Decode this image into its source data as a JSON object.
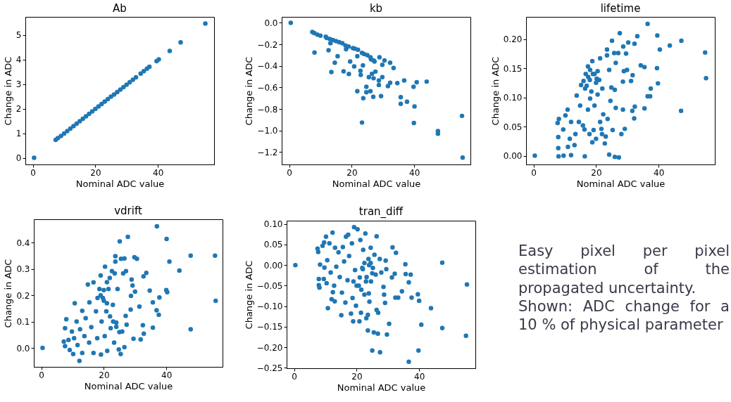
{
  "chart_data": [
    {
      "type": "scatter",
      "title": "Ab",
      "xlabel": "Nominal ADC value",
      "ylabel": "Change in ADC",
      "color": "#1f77b4",
      "marker": "circle",
      "grid": false,
      "xlim": [
        -2.4,
        58
      ],
      "ylim": [
        -0.27,
        5.74
      ],
      "xticks": [
        0,
        20,
        40
      ],
      "yticks": [
        0,
        1,
        2,
        3,
        4,
        5
      ],
      "x": [
        0.4,
        7.3,
        8,
        9,
        10,
        11,
        12,
        13,
        14,
        15,
        16,
        17,
        18,
        19,
        20,
        21,
        22,
        23,
        24,
        25,
        26,
        27,
        28,
        29,
        30,
        31,
        32,
        33,
        34.5,
        35.5,
        36.5,
        37.3,
        39.6,
        40.3,
        43.8,
        47.3,
        55.2
      ],
      "values": [
        0,
        0.73,
        0.8,
        0.89,
        0.99,
        1.09,
        1.19,
        1.29,
        1.39,
        1.49,
        1.59,
        1.69,
        1.79,
        1.89,
        1.99,
        2.09,
        2.19,
        2.29,
        2.39,
        2.49,
        2.58,
        2.68,
        2.78,
        2.88,
        2.98,
        3.08,
        3.18,
        3.28,
        3.43,
        3.53,
        3.63,
        3.71,
        3.94,
        4.01,
        4.35,
        4.7,
        5.47
      ]
    },
    {
      "type": "scatter",
      "title": "kb",
      "xlabel": "Nominal ADC value",
      "ylabel": "Change in ADC",
      "color": "#1f77b4",
      "marker": "circle",
      "grid": false,
      "xlim": [
        -2.4,
        58
      ],
      "ylim": [
        -1.315,
        0.055
      ],
      "xticks": [
        0,
        20,
        40
      ],
      "yticks": [
        {
          "value": -1.2,
          "label": "−1.2"
        },
        {
          "value": -1,
          "label": "−1.0"
        },
        {
          "value": -0.8,
          "label": "−0.8"
        },
        {
          "value": -0.6,
          "label": "−0.6"
        },
        {
          "value": -0.4,
          "label": "−0.4"
        },
        {
          "value": -0.2,
          "label": "−0.2"
        },
        {
          "value": 0,
          "label": "0.0"
        }
      ],
      "x": [
        0.5,
        7.4,
        8,
        9,
        10,
        11.7,
        12,
        13,
        13.2,
        14,
        15,
        16,
        17,
        18,
        18.2,
        19,
        20.4,
        21,
        21.8,
        22,
        23.3,
        24,
        25,
        26,
        26.2,
        27,
        27.3,
        8.1,
        12.6,
        14.6,
        15.5,
        13.5,
        17.4,
        19.1,
        19.5,
        20.8,
        21.8,
        22.8,
        22.9,
        23.3,
        23.6,
        23.7,
        24.7,
        24.7,
        25.5,
        26,
        26.5,
        26.9,
        27,
        27.6,
        28.7,
        28.7,
        28.9,
        29.4,
        29.8,
        29.8,
        30.5,
        31.6,
        32.3,
        32.3,
        33.4,
        34.6,
        35.7,
        35.7,
        36.8,
        37.7,
        39.8,
        39.9,
        40.1,
        40.8,
        44,
        47.6,
        47.6,
        55.3,
        55.5
      ],
      "values": [
        0,
        -0.085,
        -0.095,
        -0.11,
        -0.12,
        -0.13,
        -0.14,
        -0.15,
        -0.19,
        -0.16,
        -0.17,
        -0.18,
        -0.19,
        -0.21,
        -0.245,
        -0.22,
        -0.235,
        -0.24,
        -0.31,
        -0.25,
        -0.28,
        -0.29,
        -0.3,
        -0.32,
        -0.34,
        -0.35,
        -0.36,
        -0.276,
        -0.255,
        -0.37,
        -0.31,
        -0.457,
        -0.45,
        -0.475,
        -0.36,
        -0.405,
        -0.635,
        -0.445,
        -0.484,
        -0.926,
        -0.395,
        -0.7,
        -0.594,
        -0.644,
        -0.505,
        -0.635,
        -0.473,
        -0.687,
        -0.515,
        -0.453,
        -0.535,
        -0.577,
        -0.32,
        -0.68,
        -0.504,
        -0.39,
        -0.349,
        -0.587,
        -0.556,
        -0.37,
        -0.42,
        -0.56,
        -0.69,
        -0.753,
        -0.536,
        -0.733,
        -0.594,
        -0.93,
        -0.776,
        -0.552,
        -0.546,
        -1.005,
        -1.03,
        -0.864,
        -1.252
      ]
    },
    {
      "type": "scatter",
      "title": "lifetime",
      "xlabel": "Nominal ADC value",
      "ylabel": "Change in ADC",
      "color": "#1f77b4",
      "marker": "circle",
      "grid": false,
      "xlim": [
        -2.4,
        58
      ],
      "ylim": [
        -0.015,
        0.238
      ],
      "xticks": [
        0,
        20,
        40
      ],
      "yticks": [
        {
          "value": 0,
          "label": "0.00"
        },
        {
          "value": 0.05,
          "label": "0.05"
        },
        {
          "value": 0.1,
          "label": "0.10"
        },
        {
          "value": 0.15,
          "label": "0.15"
        },
        {
          "value": 0.2,
          "label": "0.20"
        }
      ],
      "x": [
        0.4,
        7.9,
        8,
        9.6,
        12,
        16.4,
        24.2,
        26,
        27.3,
        7.7,
        8.1,
        7.9,
        9.5,
        10.2,
        10.9,
        11,
        11.6,
        12,
        13.1,
        13.4,
        13.8,
        14.5,
        14.9,
        15.8,
        16.3,
        15.2,
        16,
        16.7,
        17.4,
        18.1,
        18.8,
        19.5,
        20.2,
        21.3,
        18.8,
        20,
        17.9,
        19.2,
        17.4,
        18.1,
        19.5,
        20.5,
        21.3,
        21.7,
        21.9,
        22.3,
        22.8,
        23.1,
        23.5,
        23.5,
        23.7,
        24.2,
        24.6,
        24.9,
        25.1,
        25.3,
        25.8,
        26,
        26.3,
        26.3,
        27.1,
        27.6,
        28.1,
        28.6,
        28.6,
        28.7,
        28.9,
        29.2,
        29.6,
        29.9,
        30.3,
        31.2,
        31.6,
        31.7,
        32.2,
        32.3,
        32.4,
        33.2,
        34.3,
        35.5,
        35.5,
        36.5,
        36.5,
        37.3,
        37.5,
        39.5,
        39.6,
        39.8,
        40.4,
        43.6,
        47.3,
        47.2,
        54.9,
        55.2,
        17,
        18,
        19,
        20,
        21,
        22,
        18.5,
        20.5,
        17.5,
        16.5
      ],
      "values": [
        0,
        0.013,
        -0.001,
        0,
        0.001,
        -0.001,
        0.002,
        -0.002,
        -0.003,
        0.056,
        0.063,
        0.032,
        0.045,
        0.069,
        0.079,
        0.015,
        0.029,
        0.058,
        0.018,
        0.037,
        0.103,
        0.058,
        0.086,
        0.052,
        0.045,
        0.121,
        0.128,
        0.14,
        0.153,
        0.147,
        0.162,
        0.14,
        0.132,
        0.167,
        0.023,
        0.029,
        0.037,
        0.044,
        0.079,
        0.098,
        0.086,
        0.105,
        0.058,
        0.046,
        0.037,
        0.071,
        0.021,
        0.033,
        0.182,
        0.172,
        0.063,
        0.147,
        0.094,
        0.117,
        0.197,
        0.044,
        0.176,
        0.113,
        0.159,
        0.082,
        0.176,
        0.21,
        0.037,
        0.127,
        0.079,
        0.187,
        0.145,
        0.046,
        0.175,
        0.147,
        0.194,
        0.128,
        0.077,
        0.138,
        0.064,
        0.192,
        0.084,
        0.205,
        0.155,
        0.152,
        0.081,
        0.226,
        0.102,
        0.102,
        0.115,
        0.15,
        0.206,
        0.124,
        0.182,
        0.189,
        0.197,
        0.077,
        0.177,
        0.133,
        0.12,
        0.13,
        0.14,
        0.125,
        0.13,
        0.115,
        0.11,
        0.145,
        0.135,
        0.115
      ]
    },
    {
      "type": "scatter",
      "title": "vdrift",
      "xlabel": "Nominal ADC value",
      "ylabel": "Change in ADC",
      "color": "#1f77b4",
      "marker": "circle",
      "grid": false,
      "xlim": [
        -2.4,
        58
      ],
      "ylim": [
        -0.072,
        0.489
      ],
      "xticks": [
        0,
        20,
        40
      ],
      "yticks": [
        {
          "value": 0,
          "label": "0.0"
        },
        {
          "value": 0.1,
          "label": "0.1"
        },
        {
          "value": 0.2,
          "label": "0.2"
        },
        {
          "value": 0.3,
          "label": "0.3"
        },
        {
          "value": 0.4,
          "label": "0.4"
        }
      ],
      "x": [
        0.4,
        7.2,
        7.6,
        8,
        7.6,
        8.7,
        9.1,
        9.8,
        10.2,
        10.5,
        10.7,
        11.3,
        11.6,
        12.2,
        12.4,
        13.1,
        13.1,
        13.8,
        14.2,
        14.9,
        15.3,
        15.4,
        16,
        16.7,
        16.7,
        17.5,
        17.9,
        18.6,
        19,
        19.1,
        19.3,
        19.7,
        20.3,
        20.4,
        20.8,
        21.1,
        21.5,
        21.9,
        22.2,
        22.6,
        22.9,
        23.3,
        23.5,
        23.7,
        23.7,
        24,
        24.4,
        24.8,
        25.1,
        25.4,
        25.5,
        25.9,
        26.2,
        26.6,
        26.6,
        27,
        27.1,
        27.3,
        27.7,
        28.6,
        28.7,
        28.9,
        29.2,
        29.5,
        29.8,
        30,
        30.6,
        31.4,
        31.8,
        32.5,
        32.7,
        32.8,
        33.6,
        34.7,
        35.7,
        35.7,
        36.9,
        37,
        37.6,
        37.8,
        40,
        40.1,
        40.3,
        41,
        44.2,
        47.8,
        47.8,
        55.6,
        55.8,
        19,
        20,
        21,
        22,
        23,
        24,
        25,
        20,
        21,
        18
      ],
      "values": [
        0,
        0.024,
        0.075,
        0.109,
        0.007,
        0.03,
        -0.008,
        0.062,
        -0.023,
        0.037,
        0.17,
        0.1,
        0.011,
        -0.049,
        0.071,
        -0.019,
        0.141,
        0.045,
        0.113,
        0.241,
        0.02,
        0.173,
        0.079,
        0.249,
        -0.019,
        0.139,
        0.037,
        0.224,
        0.275,
        -0.025,
        0.1,
        0.19,
        0.045,
        0.309,
        0.139,
        -0.011,
        0.224,
        0.266,
        0.075,
        0.292,
        0.164,
        0.02,
        0.283,
        0.328,
        0.349,
        0.096,
        0.224,
        -0.006,
        0.405,
        -0.023,
        0.339,
        0.062,
        0.283,
        0.34,
        0.003,
        0.122,
        0.292,
        0.088,
        0.422,
        0.146,
        0.198,
        0.26,
        0.237,
        0.035,
        0.345,
        0.214,
        0.339,
        0.157,
        0.032,
        0.086,
        0.272,
        0.054,
        0.285,
        0.218,
        0.173,
        0.077,
        0.143,
        0.462,
        0.126,
        0.192,
        0.22,
        0.414,
        0.212,
        0.328,
        0.294,
        0.351,
        0.071,
        0.351,
        0.179,
        0.2,
        0.18,
        0.17,
        0.12,
        0.1,
        0.08,
        0.06,
        0.22,
        0.25,
        0.19
      ]
    },
    {
      "type": "scatter",
      "title": "tran_diff",
      "xlabel": "Nominal ADC value",
      "ylabel": "Change in ADC",
      "color": "#1f77b4",
      "marker": "circle",
      "grid": false,
      "xlim": [
        -2.4,
        58
      ],
      "ylim": [
        -0.251,
        0.108
      ],
      "xticks": [
        0,
        20,
        40
      ],
      "yticks": [
        {
          "value": -0.25,
          "label": "−0.25"
        },
        {
          "value": -0.2,
          "label": "−0.20"
        },
        {
          "value": -0.15,
          "label": "−0.15"
        },
        {
          "value": -0.1,
          "label": "−0.10"
        },
        {
          "value": -0.05,
          "label": "−0.05"
        },
        {
          "value": 0,
          "label": "0.00"
        },
        {
          "value": 0.05,
          "label": "0.05"
        },
        {
          "value": 0.1,
          "label": "0.10"
        }
      ],
      "x": [
        0.4,
        7.5,
        7.7,
        7.9,
        7.9,
        8.1,
        8.3,
        9.1,
        9.6,
        9.5,
        9.7,
        10.2,
        10.4,
        10.6,
        10.8,
        11.3,
        11.7,
        12.3,
        12,
        12.4,
        12.8,
        13,
        13.1,
        13.5,
        14.2,
        14.6,
        15.1,
        15.3,
        15.6,
        16,
        16.4,
        16.6,
        17.1,
        17.3,
        17.6,
        18.2,
        18.5,
        18.7,
        18.9,
        19.2,
        19.5,
        19.8,
        20.3,
        20.7,
        20.9,
        21.2,
        21.4,
        21.8,
        22.1,
        22.5,
        22.8,
        23.1,
        23.2,
        23.6,
        23.6,
        23.8,
        23.9,
        24.1,
        24.5,
        24.6,
        25,
        25.2,
        25.5,
        25.7,
        26.1,
        26.4,
        26.4,
        26.8,
        26.9,
        27.4,
        27.5,
        27.9,
        28.6,
        28.8,
        29.1,
        29.3,
        29.5,
        29.7,
        30.4,
        31.5,
        31.3,
        32.2,
        32.4,
        32.6,
        33.3,
        34.5,
        35.6,
        35.7,
        36.7,
        36.7,
        37.3,
        37.6,
        39.6,
        39.8,
        40,
        40.7,
        43.8,
        47.4,
        47.4,
        55,
        55.3,
        21,
        22,
        23,
        24,
        25,
        20,
        19,
        22.5,
        24.5,
        21.5
      ],
      "values": [
        0,
        0.04,
        0.032,
        -0.034,
        -0.049,
        -0.055,
        0.001,
        0.047,
        0.055,
        -0.034,
        -0.006,
        0.069,
        -0.044,
        0.012,
        -0.105,
        0.053,
        -0.018,
        0.079,
        -0.083,
        -0.066,
        -0.05,
        -0.088,
        0.042,
        -0.004,
        0.031,
        -0.029,
        -0.122,
        -0.067,
        0.044,
        0.009,
        -0.091,
        0.069,
        -0.037,
        0.074,
        0.022,
        -0.118,
        0.053,
        -0.08,
        -0.137,
        0.092,
        -0.012,
        -0.099,
        0.087,
        -0.05,
        -0.137,
        0.061,
        -0.116,
        -0.007,
        0.037,
        -0.072,
        0.077,
        -0.129,
        -0.029,
        -0.121,
        -0.159,
        0.015,
        -0.069,
        -0.089,
        0.042,
        -0.04,
        -0.208,
        -0.007,
        -0.164,
        0.025,
        -0.023,
        0.07,
        -0.109,
        -0.167,
        -0.116,
        0.015,
        -0.212,
        -0.018,
        -0.053,
        -0.072,
        -0.092,
        0.011,
        -0.01,
        -0.169,
        -0.143,
        0.043,
        -0.03,
        -0.021,
        -0.079,
        0.03,
        -0.079,
        -0.064,
        0.002,
        -0.022,
        -0.042,
        -0.235,
        -0.023,
        -0.079,
        -0.071,
        -0.208,
        -0.087,
        -0.145,
        -0.105,
        0.006,
        -0.153,
        -0.172,
        -0.047,
        -0.03,
        -0.01,
        -0.04,
        0,
        -0.02,
        -0.05,
        -0.04,
        0.005,
        0.005,
        -0.06
      ]
    },
    {
      "type": "other",
      "annotations": [
        "Easy pixel per pixel estimation of the propagated uncertainty.",
        "Shown:  ADC change for a 10 % of physical parameter"
      ]
    }
  ]
}
